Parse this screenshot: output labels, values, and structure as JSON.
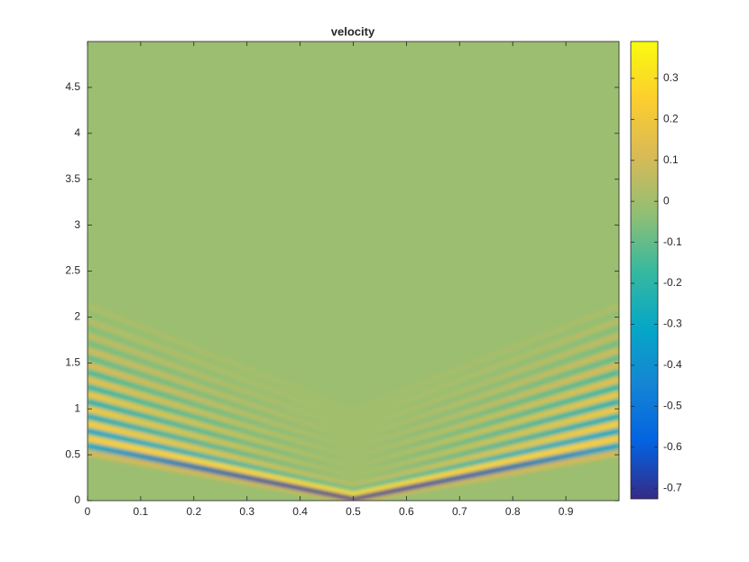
{
  "chart_data": {
    "type": "heatmap",
    "title": "velocity",
    "xlim": [
      0,
      1
    ],
    "ylim": [
      0,
      5
    ],
    "xticks": [
      0,
      0.1,
      0.2,
      0.3,
      0.4,
      0.5,
      0.6,
      0.7,
      0.8,
      0.9
    ],
    "yticks": [
      0,
      0.5,
      1,
      1.5,
      2,
      2.5,
      3,
      3.5,
      4,
      4.5
    ],
    "clim": [
      -0.726,
      0.39
    ],
    "colorbar_ticks": [
      -0.7,
      -0.6,
      -0.5,
      -0.4,
      -0.3,
      -0.2,
      -0.1,
      0,
      0.1,
      0.2,
      0.3
    ],
    "colormap": [
      "#352a87",
      "#0363e1",
      "#1485d4",
      "#06a7c6",
      "#38b99e",
      "#92bf73",
      "#d9ba56",
      "#fcce2e",
      "#f9fb0e"
    ],
    "series": [
      {
        "x": [
          0,
          0.5,
          1
        ],
        "y": [
          0.52,
          0,
          0.52
        ],
        "values": [
          0.1,
          0.1,
          0.1
        ]
      },
      {
        "x": [
          0,
          0.5,
          1
        ],
        "y": [
          0.6,
          0.03,
          0.6
        ],
        "values": [
          -0.3,
          -0.72,
          -0.3
        ]
      },
      {
        "x": [
          0,
          0.5,
          1
        ],
        "y": [
          0.68,
          0.08,
          0.68
        ],
        "values": [
          0.25,
          0.3,
          0.25
        ]
      },
      {
        "x": [
          0,
          0.5,
          1
        ],
        "y": [
          0.76,
          0.13,
          0.76
        ],
        "values": [
          -0.3,
          -0.08,
          -0.3
        ]
      },
      {
        "x": [
          0,
          0.5,
          1
        ],
        "y": [
          0.84,
          0.18,
          0.84
        ],
        "values": [
          0.25,
          0.04,
          0.25
        ]
      },
      {
        "x": [
          0,
          0.5,
          1
        ],
        "y": [
          0.92,
          0.23,
          0.92
        ],
        "values": [
          -0.25,
          0,
          -0.25
        ]
      },
      {
        "x": [
          0,
          0.5,
          1
        ],
        "y": [
          1.0,
          0.28,
          1.0
        ],
        "values": [
          0.22,
          0,
          0.22
        ]
      },
      {
        "x": [
          0,
          0.5,
          1
        ],
        "y": [
          1.08,
          0.33,
          1.08
        ],
        "values": [
          -0.22,
          0,
          -0.22
        ]
      },
      {
        "x": [
          0,
          0.5,
          1
        ],
        "y": [
          1.16,
          0.38,
          1.16
        ],
        "values": [
          0.2,
          0,
          0.2
        ]
      },
      {
        "x": [
          0,
          0.5,
          1
        ],
        "y": [
          1.24,
          0.43,
          1.24
        ],
        "values": [
          -0.18,
          0,
          -0.18
        ]
      },
      {
        "x": [
          0,
          0.5,
          1
        ],
        "y": [
          1.32,
          0.48,
          1.32
        ],
        "values": [
          0.16,
          0,
          0.16
        ]
      },
      {
        "x": [
          0,
          0.5,
          1
        ],
        "y": [
          1.4,
          0.53,
          1.4
        ],
        "values": [
          -0.14,
          0,
          -0.14
        ]
      },
      {
        "x": [
          0,
          0.5,
          1
        ],
        "y": [
          1.48,
          0.58,
          1.48
        ],
        "values": [
          0.12,
          0,
          0.12
        ]
      },
      {
        "x": [
          0,
          0.5,
          1
        ],
        "y": [
          1.56,
          0.63,
          1.56
        ],
        "values": [
          -0.1,
          0,
          -0.1
        ]
      },
      {
        "x": [
          0,
          0.5,
          1
        ],
        "y": [
          1.64,
          0.68,
          1.64
        ],
        "values": [
          0.09,
          0,
          0.09
        ]
      },
      {
        "x": [
          0,
          0.5,
          1
        ],
        "y": [
          1.72,
          0.73,
          1.72
        ],
        "values": [
          -0.07,
          0,
          -0.07
        ]
      },
      {
        "x": [
          0,
          0.5,
          1
        ],
        "y": [
          1.8,
          0.78,
          1.8
        ],
        "values": [
          0.06,
          0,
          0.06
        ]
      },
      {
        "x": [
          0,
          0.5,
          1
        ],
        "y": [
          1.88,
          0.83,
          1.88
        ],
        "values": [
          -0.05,
          0,
          -0.05
        ]
      },
      {
        "x": [
          0,
          0.5,
          1
        ],
        "y": [
          1.96,
          0.88,
          1.96
        ],
        "values": [
          0.04,
          0,
          0.04
        ]
      },
      {
        "x": [
          0,
          0.5,
          1
        ],
        "y": [
          2.04,
          0.93,
          2.04
        ],
        "values": [
          -0.03,
          0,
          -0.03
        ]
      },
      {
        "x": [
          0,
          0.5,
          1
        ],
        "y": [
          2.12,
          0.98,
          2.12
        ],
        "values": [
          0.02,
          0,
          0.02
        ]
      }
    ]
  }
}
